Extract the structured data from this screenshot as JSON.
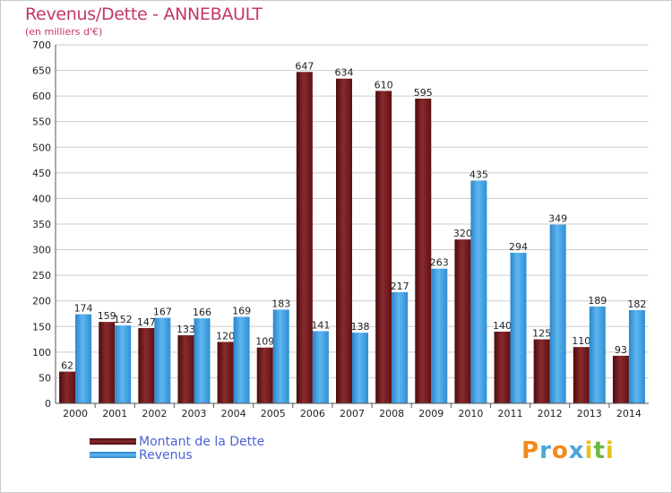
{
  "title": "Revenus/Dette - ANNEBAULT",
  "subtitle": "(en milliers d'€)",
  "logo": {
    "letters": [
      "P",
      "r",
      "o",
      "x",
      "i",
      "t",
      "i"
    ],
    "colors": [
      "#f28a1c",
      "#4da6d9",
      "#f28a1c",
      "#4da6d9",
      "#e8c21a",
      "#6ab845",
      "#e8c21a"
    ]
  },
  "colors": {
    "dette": "#7a1f22",
    "revenus": "#3d9fe4",
    "grid": "#cccccc",
    "background": "#ffffff"
  },
  "chart_data": {
    "type": "bar",
    "categories": [
      "2000",
      "2001",
      "2002",
      "2003",
      "2004",
      "2005",
      "2006",
      "2007",
      "2008",
      "2009",
      "2010",
      "2011",
      "2012",
      "2013",
      "2014"
    ],
    "series": [
      {
        "name": "Montant de la Dette",
        "values": [
          62,
          159,
          147,
          133,
          120,
          109,
          647,
          634,
          610,
          595,
          320,
          140,
          125,
          110,
          93
        ]
      },
      {
        "name": "Revenus",
        "values": [
          174,
          152,
          167,
          166,
          169,
          183,
          141,
          138,
          217,
          263,
          435,
          294,
          349,
          189,
          182
        ]
      }
    ],
    "yticks": [
      "0",
      "50",
      "100",
      "150",
      "200",
      "250",
      "300",
      "350",
      "400",
      "450",
      "500",
      "550",
      "600",
      "650",
      "700"
    ],
    "ylim": [
      0,
      700
    ],
    "grid": true,
    "legend_position": "bottom-left"
  }
}
